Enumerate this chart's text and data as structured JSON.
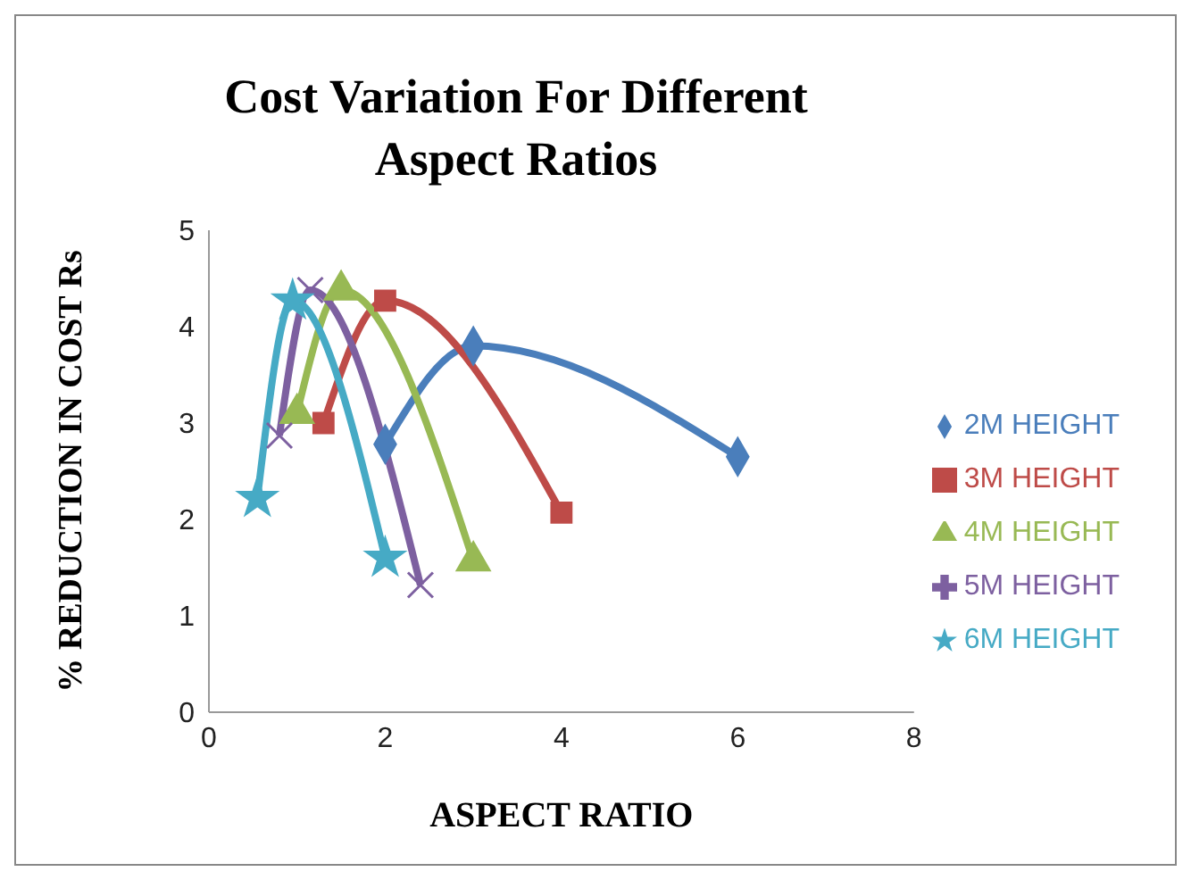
{
  "chart_data": {
    "type": "line",
    "title": "Cost Variation For Different Aspect Ratios",
    "xlabel": "ASPECT RATIO",
    "ylabel": "% REDUCTION IN COST Rs",
    "xlim": [
      0,
      8
    ],
    "xticks": [
      0,
      2,
      4,
      6,
      8
    ],
    "ylim": [
      0,
      5
    ],
    "yticks": [
      0,
      1,
      2,
      3,
      4,
      5
    ],
    "grid": false,
    "legend": "right",
    "line_style": "solid",
    "series": [
      {
        "name": "2M HEIGHT",
        "color": "#4a7ebb",
        "marker": "diamond",
        "x": [
          2,
          3,
          6
        ],
        "values": [
          2.78,
          3.8,
          2.65
        ]
      },
      {
        "name": "3M HEIGHT",
        "color": "#be4b48",
        "marker": "square",
        "x": [
          1.3,
          2,
          4
        ],
        "values": [
          3,
          4.27,
          2.07
        ]
      },
      {
        "name": "4M HEIGHT",
        "color": "#98b954",
        "marker": "triangle",
        "x": [
          1,
          1.5,
          3
        ],
        "values": [
          3.1,
          4.38,
          1.57
        ]
      },
      {
        "name": "5M HEIGHT",
        "color": "#7d60a0",
        "marker": "cross",
        "x": [
          0.8,
          1.15,
          2.4
        ],
        "values": [
          2.87,
          4.38,
          1.32
        ]
      },
      {
        "name": "6M HEIGHT",
        "color": "#46aac5",
        "marker": "star",
        "x": [
          0.55,
          0.95,
          2
        ],
        "values": [
          2.22,
          4.27,
          1.6
        ]
      }
    ]
  }
}
